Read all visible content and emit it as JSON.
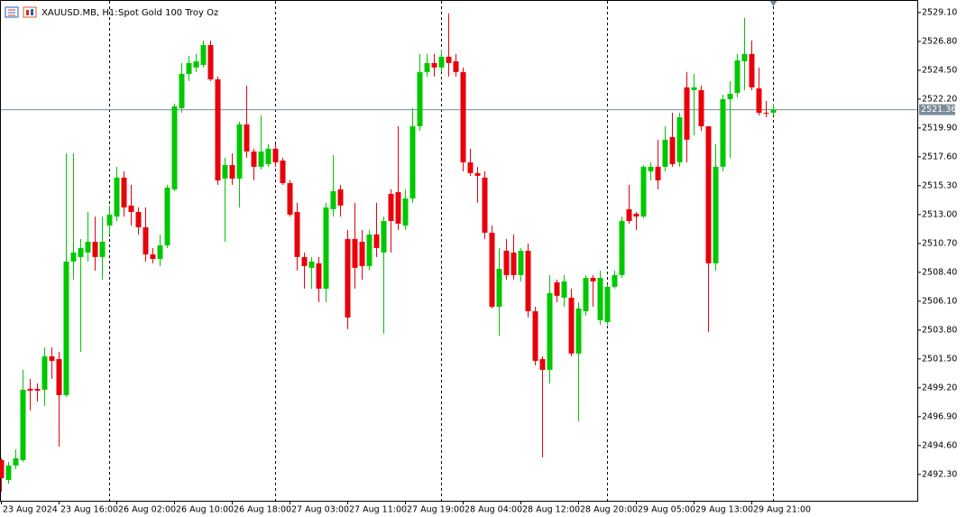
{
  "chart_data": {
    "type": "candlestick",
    "symbol": "XAUUSD.MB, H1:",
    "description": "Spot Gold 100 Troy Oz",
    "bull_color": "#00c800",
    "bear_color": "#e8000b",
    "open": [
      2493.44,
      2491.86,
      2493.01,
      2493.44,
      2499.12,
      2499.12,
      2499.05,
      2501.71,
      2501.49,
      2498.62,
      2509.26,
      2509.62,
      2509.98,
      2510.84,
      2509.62,
      2512.13,
      2512.85,
      2515.95,
      2513.72,
      2513.21,
      2511.99,
      2509.83,
      2509.47,
      2510.55,
      2515.01,
      2521.48,
      2524.21,
      2524.72,
      2524.93,
      2526.51,
      2523.78,
      2515.87,
      2516.95,
      2515.87,
      2520.19,
      2518.03,
      2516.81,
      2517.02,
      2518.25,
      2517.31,
      2515.51,
      2513.21,
      2509.62,
      2508.76,
      2509.12,
      2507.1,
      2513.43,
      2515.01,
      2511.06,
      2511.06,
      2510.84,
      2508.9,
      2511.42,
      2509.98,
      2514.65,
      2514.8,
      2512.13,
      2514.29,
      2520.04,
      2524.36,
      2525.08,
      2524.72,
      2525.58,
      2525.22,
      2524.36,
      2517.17,
      2516.31,
      2515.95,
      2511.56,
      2505.66,
      2510.12,
      2509.98,
      2508.18,
      2510.12,
      2505.3,
      2501.49,
      2500.63,
      2507.61,
      2506.38,
      2506.38,
      2501.93,
      2505.3,
      2507.96,
      2504.59,
      2504.44,
      2507.25,
      2508.18,
      2513.43,
      2513.07,
      2512.85,
      2516.45,
      2516.81,
      2516.81,
      2519.18,
      2517.17,
      2523.14,
      2522.92,
      2522.92,
      2520.04,
      2509.12,
      2516.81,
      2522.2,
      2522.7,
      2525.22,
      2525.8,
      2523.06,
      2521.12,
      2521.12
    ],
    "high": [
      2493.58,
      2493.3,
      2494.3,
      2500.63,
      2499.91,
      2499.55,
      2502.43,
      2502.43,
      2502.07,
      2517.89,
      2517.89,
      2511.06,
      2513.21,
      2512.85,
      2512.85,
      2513.72,
      2516.81,
      2516.45,
      2515.37,
      2513.57,
      2513.57,
      2510.34,
      2511.42,
      2515.37,
      2521.84,
      2525.08,
      2525.65,
      2525.8,
      2526.87,
      2526.87,
      2524.0,
      2517.53,
      2517.89,
      2520.4,
      2523.28,
      2518.25,
      2520.91,
      2518.61,
      2518.61,
      2517.53,
      2515.73,
      2513.93,
      2509.98,
      2509.62,
      2509.62,
      2513.93,
      2517.74,
      2515.37,
      2511.78,
      2513.93,
      2511.78,
      2511.78,
      2513.93,
      2512.85,
      2515.01,
      2520.04,
      2515.01,
      2521.48,
      2525.8,
      2525.8,
      2525.8,
      2526.16,
      2529.03,
      2525.8,
      2524.72,
      2518.25,
      2516.81,
      2516.45,
      2512.13,
      2510.34,
      2511.06,
      2511.42,
      2510.34,
      2510.7,
      2505.66,
      2501.71,
      2508.18,
      2507.82,
      2508.18,
      2507.1,
      2506.02,
      2508.18,
      2508.18,
      2508.54,
      2507.46,
      2508.54,
      2512.85,
      2515.37,
      2513.21,
      2516.95,
      2517.17,
      2518.97,
      2520.04,
      2521.12,
      2521.12,
      2524.36,
      2524.21,
      2523.28,
      2520.04,
      2518.61,
      2522.56,
      2523.64,
      2525.8,
      2528.67,
      2526.87,
      2524.72,
      2522.06,
      2521.84
    ],
    "low": [
      2490.92,
      2491.57,
      2492.72,
      2493.3,
      2497.4,
      2498.11,
      2497.75,
      2499.91,
      2494.52,
      2498.47,
      2507.82,
      2502.07,
      2509.26,
      2508.54,
      2507.82,
      2511.42,
      2512.49,
      2512.85,
      2512.13,
      2511.42,
      2509.26,
      2509.12,
      2508.9,
      2510.34,
      2514.87,
      2521.12,
      2523.64,
      2524.36,
      2524.72,
      2523.64,
      2515.37,
      2510.84,
      2515.37,
      2513.57,
      2517.53,
      2515.73,
      2516.59,
      2516.81,
      2516.81,
      2515.37,
      2512.85,
      2508.54,
      2507.1,
      2507.1,
      2506.02,
      2506.02,
      2512.85,
      2512.85,
      2503.87,
      2507.1,
      2507.82,
      2508.54,
      2509.62,
      2503.51,
      2509.98,
      2511.78,
      2511.78,
      2513.93,
      2519.68,
      2524.0,
      2524.0,
      2524.36,
      2524.0,
      2524.0,
      2516.45,
      2516.09,
      2513.93,
      2511.06,
      2505.52,
      2503.36,
      2507.82,
      2507.82,
      2507.68,
      2504.8,
      2500.99,
      2493.66,
      2499.55,
      2506.02,
      2505.66,
      2501.71,
      2496.53,
      2504.94,
      2505.66,
      2504.23,
      2504.23,
      2507.1,
      2507.96,
      2512.28,
      2511.78,
      2512.71,
      2515.73,
      2515.01,
      2516.45,
      2516.81,
      2516.81,
      2517.17,
      2519.32,
      2519.68,
      2503.65,
      2508.54,
      2516.45,
      2517.53,
      2522.34,
      2522.92,
      2522.92,
      2520.91,
      2520.76,
      2520.91
    ],
    "close": [
      2492.0,
      2493.01,
      2493.58,
      2499.05,
      2498.98,
      2498.98,
      2501.71,
      2501.35,
      2498.62,
      2509.26,
      2509.98,
      2510.34,
      2510.84,
      2509.62,
      2510.84,
      2513.0,
      2515.95,
      2513.57,
      2513.21,
      2511.99,
      2509.83,
      2509.47,
      2510.55,
      2515.15,
      2521.63,
      2524.21,
      2525.08,
      2525.22,
      2526.51,
      2523.78,
      2515.73,
      2516.95,
      2515.87,
      2520.19,
      2518.03,
      2516.81,
      2518.03,
      2518.25,
      2517.17,
      2515.51,
      2513.0,
      2509.62,
      2508.9,
      2509.26,
      2507.1,
      2513.57,
      2514.87,
      2513.72,
      2504.8,
      2508.76,
      2508.9,
      2511.42,
      2510.34,
      2512.49,
      2512.49,
      2512.28,
      2514.29,
      2520.04,
      2524.36,
      2525.08,
      2524.72,
      2525.58,
      2525.08,
      2524.36,
      2517.17,
      2516.31,
      2516.09,
      2511.56,
      2505.66,
      2508.68,
      2508.18,
      2508.18,
      2510.12,
      2505.3,
      2501.35,
      2500.63,
      2506.74,
      2506.53,
      2507.68,
      2501.93,
      2505.52,
      2507.96,
      2507.68,
      2507.96,
      2507.25,
      2508.18,
      2512.49,
      2512.49,
      2512.85,
      2516.81,
      2516.81,
      2515.73,
      2518.97,
      2517.02,
      2520.76,
      2518.97,
      2523.14,
      2520.04,
      2509.12,
      2516.81,
      2522.2,
      2522.63,
      2525.29,
      2525.8,
      2523.14,
      2521.12,
      2521.05,
      2521.36
    ],
    "ylim": [
      2490.2,
      2530.1
    ],
    "yticks": [
      {
        "value": 2529.1,
        "label": "2529.10"
      },
      {
        "value": 2526.8,
        "label": "2526.80"
      },
      {
        "value": 2524.5,
        "label": "2524.50"
      },
      {
        "value": 2522.2,
        "label": "2522.20"
      },
      {
        "value": 2519.9,
        "label": "2519.90"
      },
      {
        "value": 2517.6,
        "label": "2517.60"
      },
      {
        "value": 2515.3,
        "label": "2515.30"
      },
      {
        "value": 2513.0,
        "label": "2513.00"
      },
      {
        "value": 2510.7,
        "label": "2510.70"
      },
      {
        "value": 2508.4,
        "label": "2508.40"
      },
      {
        "value": 2506.1,
        "label": "2506.10"
      },
      {
        "value": 2503.8,
        "label": "2503.80"
      },
      {
        "value": 2501.5,
        "label": "2501.50"
      },
      {
        "value": 2499.2,
        "label": "2499.20"
      },
      {
        "value": 2496.9,
        "label": "2496.90"
      },
      {
        "value": 2494.6,
        "label": "2494.60"
      },
      {
        "value": 2492.3,
        "label": "2492.30"
      }
    ],
    "xticks": [
      {
        "value": 0,
        "label": "23 Aug 2024"
      },
      {
        "value": 8,
        "label": "23 Aug 16:00"
      },
      {
        "value": 16,
        "label": "26 Aug 02:00"
      },
      {
        "value": 24,
        "label": "26 Aug 10:00"
      },
      {
        "value": 32,
        "label": "26 Aug 18:00"
      },
      {
        "value": 40,
        "label": "27 Aug 03:00"
      },
      {
        "value": 48,
        "label": "27 Aug 11:00"
      },
      {
        "value": 56,
        "label": "27 Aug 19:00"
      },
      {
        "value": 64,
        "label": "28 Aug 04:00"
      },
      {
        "value": 72,
        "label": "28 Aug 12:00"
      },
      {
        "value": 80,
        "label": "28 Aug 20:00"
      },
      {
        "value": 88,
        "label": "29 Aug 05:00"
      },
      {
        "value": 96,
        "label": "29 Aug 13:00"
      },
      {
        "value": 104,
        "label": "29 Aug 21:00"
      }
    ],
    "period_separators": [
      15,
      38,
      61,
      84,
      107
    ],
    "last_price": {
      "value": 2521.36,
      "label": "2521.36"
    }
  }
}
